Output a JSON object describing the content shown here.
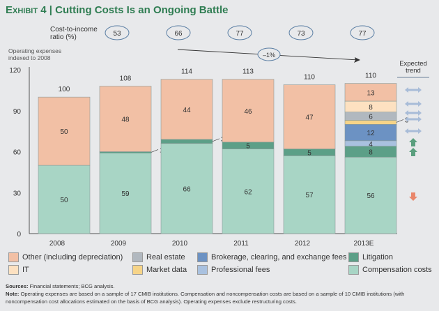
{
  "title": {
    "exhibit": "Exhibit 4",
    "text": "Cutting Costs Is an Ongoing Battle"
  },
  "chart_data": {
    "type": "bar",
    "stacked": true,
    "ylabel": "Operating expenses indexed to 2008",
    "ylim": [
      0,
      120
    ],
    "yticks": [
      0,
      30,
      60,
      90,
      120
    ],
    "categories": [
      "2008",
      "2009",
      "2010",
      "2011",
      "2012",
      "2013E"
    ],
    "totals": [
      "100",
      "108",
      "114",
      "113",
      "110",
      "110"
    ],
    "series": [
      {
        "name": "Compensation costs",
        "color": "#a8d5c5",
        "values": [
          50,
          59,
          66,
          62,
          57,
          56
        ]
      },
      {
        "name": "Litigation",
        "color": "#5c9f87",
        "values": [
          0,
          1,
          3,
          5,
          5,
          8
        ]
      },
      {
        "name": "Professional fees",
        "color": "#a9c1df",
        "values": [
          0,
          0,
          0,
          0,
          0,
          4
        ]
      },
      {
        "name": "Brokerage, clearing, and exchange fees",
        "color": "#6c92c3",
        "values": [
          0,
          0,
          0,
          0,
          0,
          12
        ]
      },
      {
        "name": "Market data",
        "color": "#f6d488",
        "values": [
          0,
          0,
          0,
          0,
          0,
          3
        ]
      },
      {
        "name": "Real estate",
        "color": "#b1b8bf",
        "values": [
          0,
          0,
          0,
          0,
          0,
          6
        ]
      },
      {
        "name": "IT",
        "color": "#fde1c1",
        "values": [
          0,
          0,
          0,
          0,
          0,
          8
        ]
      },
      {
        "name": "Other (including depreciation)",
        "color": "#f2c0a5",
        "values": [
          50,
          48,
          44,
          46,
          47,
          13
        ]
      }
    ],
    "cost_to_income": {
      "label_line1": "Cost-to-income",
      "label_line2": "ratio (%)",
      "categories": [
        "2009",
        "2010",
        "2011",
        "2012",
        "2013E"
      ],
      "values": [
        "53",
        "66",
        "77",
        "73",
        "77"
      ]
    },
    "trend_annotation": "–1%",
    "expected_trend": {
      "title_line1": "Expected",
      "title_line2": "trend",
      "items": [
        {
          "series": "Other (including depreciation)",
          "dir": "flat"
        },
        {
          "series": "IT",
          "dir": "flat"
        },
        {
          "series": "Real estate",
          "dir": "flat"
        },
        {
          "series": "Market data",
          "dir": "flat"
        },
        {
          "series": "Brokerage, clearing, and exchange fees",
          "dir": "flat"
        },
        {
          "series": "Professional fees",
          "dir": "up"
        },
        {
          "series": "Litigation",
          "dir": "up"
        },
        {
          "series": "Compensation costs",
          "dir": "down"
        }
      ]
    },
    "legend": [
      "Other (including depreciation)",
      "IT",
      "Real estate",
      "Market data",
      "Brokerage, clearing, and exchange fees",
      "Professional fees",
      "Litigation",
      "Compensation costs"
    ]
  },
  "sources": {
    "label": "Sources:",
    "text": " Financial statements; BCG analysis."
  },
  "note": {
    "label": "Note:",
    "text": " Operating expenses are based on a sample of 17 CMIB institutions. Compensation and noncompensation costs are based on a sample of 10 CMIB institutions (with noncompensation cost allocations estimated on the basis of BCG analysis). Operating expenses exclude restructuring costs."
  }
}
